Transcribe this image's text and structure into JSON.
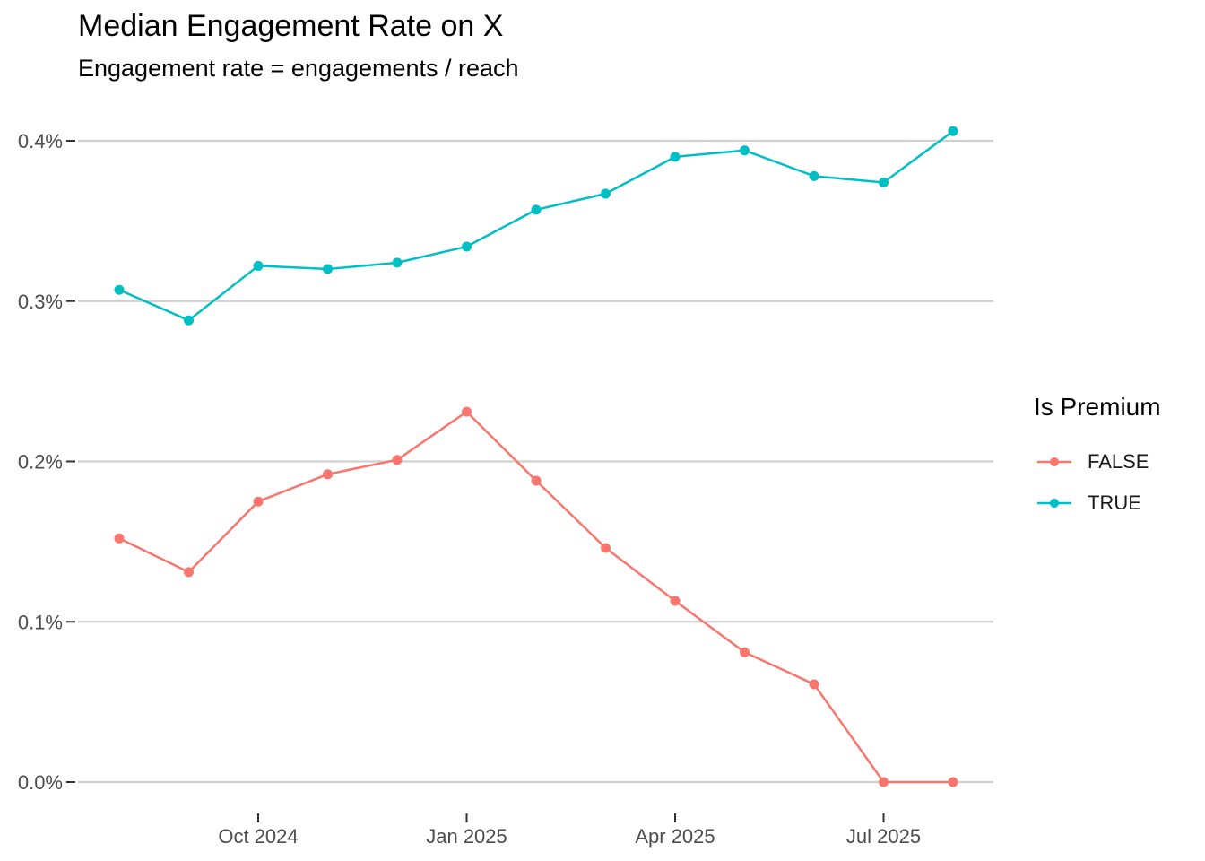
{
  "chart_data": {
    "type": "line",
    "title": "Median Engagement Rate on X",
    "subtitle": "Engagement rate = engagements / reach",
    "xlabel": "",
    "ylabel": "",
    "x": [
      "2024-08",
      "2024-09",
      "2024-10",
      "2024-11",
      "2024-12",
      "2025-01",
      "2025-02",
      "2025-03",
      "2025-04",
      "2025-05",
      "2025-06",
      "2025-07",
      "2025-08"
    ],
    "x_ticks": [
      "Oct 2024",
      "Jan 2025",
      "Apr 2025",
      "Jul 2025"
    ],
    "y_ticks": [
      "0.0%",
      "0.1%",
      "0.2%",
      "0.3%",
      "0.4%"
    ],
    "ylim": [
      0,
      0.4
    ],
    "grid": "horizontal",
    "legend": {
      "title": "Is Premium",
      "position": "right"
    },
    "series": [
      {
        "name": "FALSE",
        "color": "#F8766D",
        "values": [
          0.152,
          0.131,
          0.175,
          0.192,
          0.201,
          0.231,
          0.188,
          0.146,
          0.113,
          0.081,
          0.061,
          0.0,
          0.0
        ]
      },
      {
        "name": "TRUE",
        "color": "#00BFC4",
        "values": [
          0.307,
          0.288,
          0.322,
          0.32,
          0.324,
          0.334,
          0.357,
          0.367,
          0.39,
          0.394,
          0.378,
          0.374,
          0.406
        ]
      }
    ]
  }
}
